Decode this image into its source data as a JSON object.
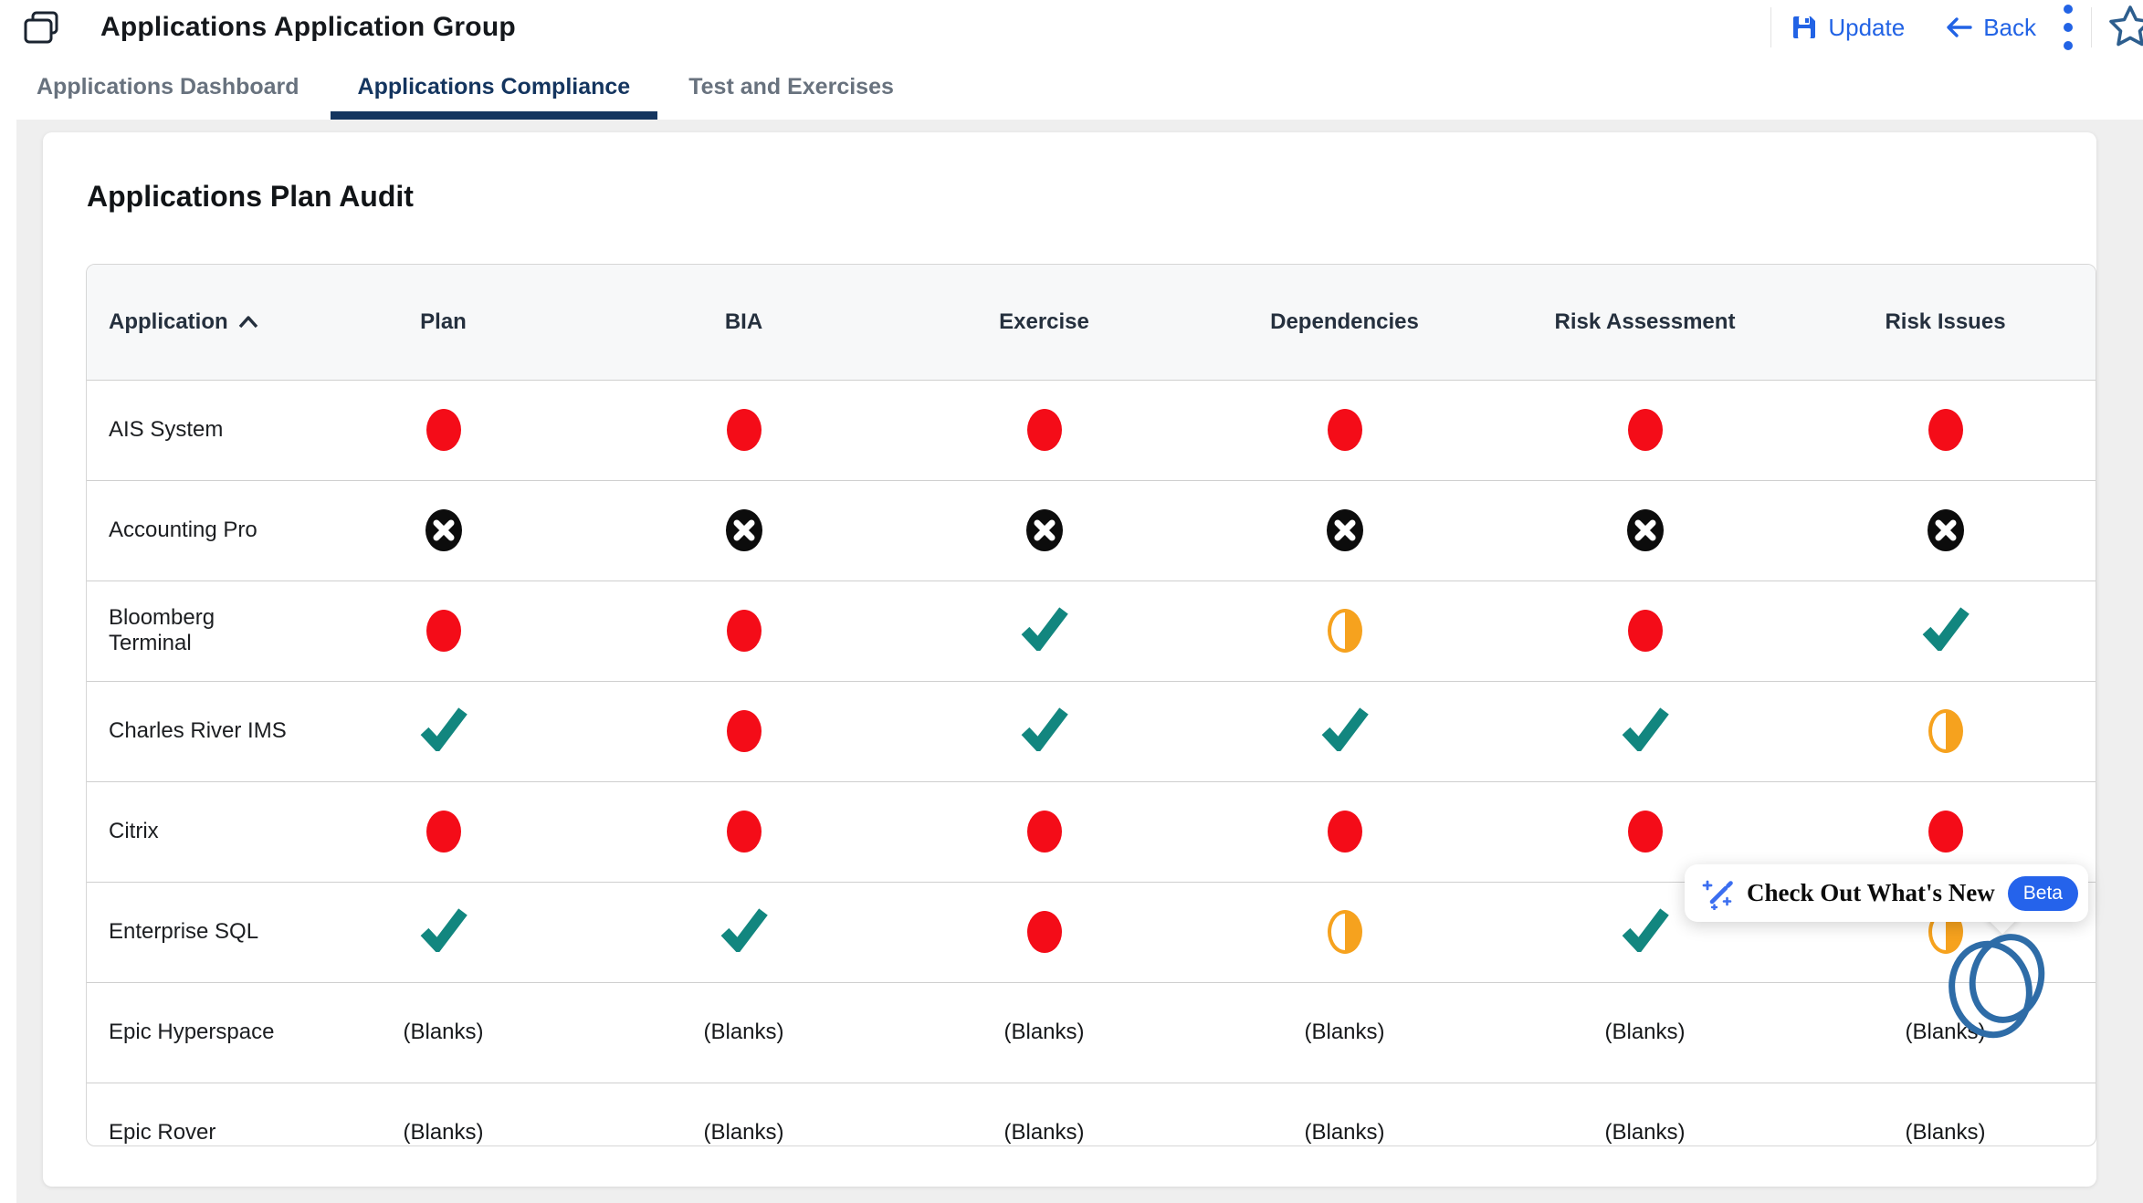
{
  "window": {
    "title": "Applications Application Group"
  },
  "header": {
    "update_label": "Update",
    "back_label": "Back",
    "icons": {
      "window": "stacked-windows-icon",
      "update": "save-icon",
      "back": "back-arrow-icon",
      "more": "kebab-menu-icon",
      "favorite": "star-icon"
    }
  },
  "tabs": [
    {
      "label": "Applications Dashboard",
      "active": false
    },
    {
      "label": "Applications Compliance",
      "active": true
    },
    {
      "label": "Test and Exercises",
      "active": false
    }
  ],
  "card": {
    "title": "Applications Plan Audit"
  },
  "table": {
    "columns": [
      "Application",
      "Plan",
      "BIA",
      "Exercise",
      "Dependencies",
      "Risk Assessment",
      "Risk Issues"
    ],
    "sorted_column": "Application",
    "sort_direction": "ascending",
    "blank_label": "(Blanks)",
    "status_icon_names": [
      "red-circle-icon",
      "black-x-circle-icon",
      "teal-check-icon",
      "half-orange-circle-icon"
    ],
    "rows": [
      {
        "application": "AIS System",
        "cells": [
          "red",
          "red",
          "red",
          "red",
          "red",
          "red"
        ]
      },
      {
        "application": "Accounting Pro",
        "cells": [
          "x",
          "x",
          "x",
          "x",
          "x",
          "x"
        ]
      },
      {
        "application": "Bloomberg Terminal",
        "cells": [
          "red",
          "red",
          "check",
          "half",
          "red",
          "check"
        ]
      },
      {
        "application": "Charles River IMS",
        "cells": [
          "check",
          "red",
          "check",
          "check",
          "check",
          "half"
        ]
      },
      {
        "application": "Citrix",
        "cells": [
          "red",
          "red",
          "red",
          "red",
          "red",
          "red"
        ]
      },
      {
        "application": "Enterprise SQL",
        "cells": [
          "check",
          "check",
          "red",
          "half",
          "check",
          "half"
        ]
      },
      {
        "application": "Epic Hyperspace",
        "cells": [
          "blank",
          "blank",
          "blank",
          "blank",
          "blank",
          "blank"
        ]
      },
      {
        "application": "Epic Rover",
        "cells": [
          "blank",
          "blank",
          "blank",
          "blank",
          "blank",
          "blank"
        ]
      }
    ]
  },
  "popup": {
    "title": "Check Out What's New",
    "badge": "Beta",
    "icon": "magic-wand-icon",
    "annotation": "drawn-circle-annotation"
  },
  "colors": {
    "accent-blue": "#2263e5",
    "navy": "#14355f",
    "red": "#f40c18",
    "teal": "#12867f",
    "orange": "#f6a21e",
    "black-ic": "#0c0c0c",
    "beta-blue": "#2563eb",
    "scribble": "#2e6ca7",
    "star-blue": "#2d5e8e",
    "page-bg": "#efefef"
  }
}
